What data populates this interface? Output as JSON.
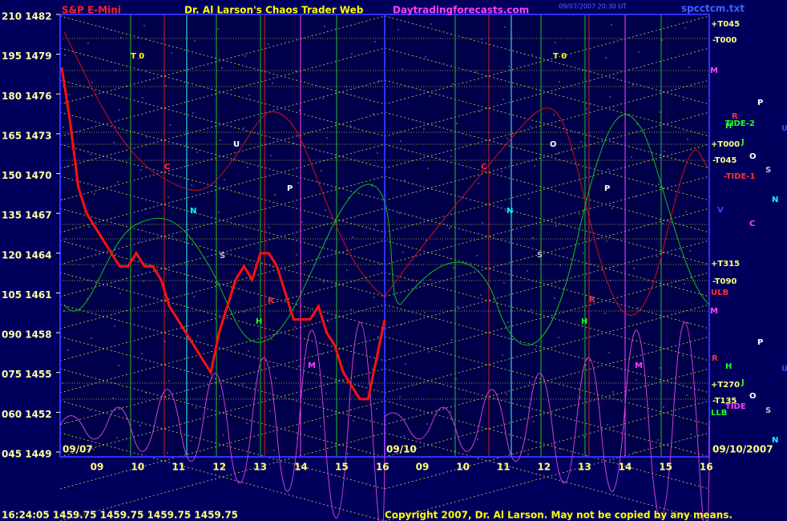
{
  "header": {
    "symbol": "S&P E-Mini",
    "site_title": "Dr. Al Larson's Chaos Trader Web",
    "url": "Daytradingforecasts.com",
    "file": "spcctcm.txt",
    "timestamp": "09/07/2007 20:30 UT"
  },
  "chart_data": {
    "type": "line",
    "yticks": [
      {
        "value": 1482,
        "label": "210 1482"
      },
      {
        "value": 1479,
        "label": "195 1479"
      },
      {
        "value": 1476,
        "label": "180 1476"
      },
      {
        "value": 1473,
        "label": "165 1473"
      },
      {
        "value": 1470,
        "label": "150 1470"
      },
      {
        "value": 1467,
        "label": "135 1467"
      },
      {
        "value": 1464,
        "label": "120 1464"
      },
      {
        "value": 1461,
        "label": "105 1461"
      },
      {
        "value": 1458,
        "label": "090 1458"
      },
      {
        "value": 1455,
        "label": "075 1455"
      },
      {
        "value": 1452,
        "label": "060 1452"
      },
      {
        "value": 1449,
        "label": "045 1449"
      }
    ],
    "ylim": [
      1449,
      1482
    ],
    "hour_labels": [
      "09",
      "10",
      "11",
      "12",
      "13",
      "14",
      "15",
      "16",
      "09",
      "10",
      "11",
      "12",
      "13",
      "14",
      "15",
      "16"
    ],
    "panel_dates": [
      "09/07",
      "09/10"
    ],
    "end_date": "09/10/2007",
    "series": [
      {
        "name": "S&P E-Mini",
        "color": "#ff1010",
        "values": [
          1478,
          1474,
          1469,
          1467,
          1466,
          1465,
          1464,
          1463,
          1463,
          1464,
          1463,
          1463,
          1462,
          1460,
          1459,
          1458,
          1457,
          1456,
          1455,
          1458,
          1460,
          1462,
          1463,
          1462,
          1464,
          1464,
          1463,
          1461,
          1459,
          1459,
          1459,
          1460,
          1458,
          1457,
          1455,
          1454,
          1453,
          1453,
          1456,
          1459
        ]
      }
    ],
    "annotations": [
      {
        "text": "+T045",
        "color": "#ffff80"
      },
      {
        "text": "-T000",
        "color": "#ffff80"
      },
      {
        "text": "M",
        "color": "#ff40ff"
      },
      {
        "text": "+T000",
        "color": "#ffff80"
      },
      {
        "text": "-T045",
        "color": "#ffff80"
      },
      {
        "text": "+T315",
        "color": "#ffff80"
      },
      {
        "text": "-T090",
        "color": "#ffff80"
      },
      {
        "text": "ULB",
        "color": "#ff3030"
      },
      {
        "text": "M",
        "color": "#ff40ff"
      },
      {
        "text": "+T270",
        "color": "#ffff80"
      },
      {
        "text": "-T135",
        "color": "#ffff80"
      },
      {
        "text": "LLB",
        "color": "#20ff20"
      },
      {
        "text": "TIDE-2",
        "color": "#20ff20"
      },
      {
        "text": "-TIDE-1",
        "color": "#ff3030"
      },
      {
        "text": "TIDE",
        "color": "#ff40ff"
      },
      {
        "text": "P",
        "color": "#ffffff"
      },
      {
        "text": "R",
        "color": "#ff3030"
      },
      {
        "text": "H",
        "color": "#20ff20"
      },
      {
        "text": "J",
        "color": "#20ff20"
      },
      {
        "text": "O",
        "color": "#ffffff"
      },
      {
        "text": "S",
        "color": "#c0c0c0"
      },
      {
        "text": "N",
        "color": "#00ffff"
      },
      {
        "text": "V",
        "color": "#4040ff"
      },
      {
        "text": "C",
        "color": "#ff40ff"
      },
      {
        "text": "U",
        "color": "#4040ff"
      },
      {
        "text": "P",
        "color": "#ffffff"
      },
      {
        "text": "R",
        "color": "#ff3030"
      },
      {
        "text": "H",
        "color": "#20ff20"
      },
      {
        "text": "J",
        "color": "#20ff20"
      },
      {
        "text": "O",
        "color": "#ffffff"
      },
      {
        "text": "S",
        "color": "#c0c0c0"
      },
      {
        "text": "N",
        "color": "#00ffff"
      },
      {
        "text": "U",
        "color": "#4040ff"
      },
      {
        "text": "T 0",
        "color": "#ffff00"
      },
      {
        "text": "T 0",
        "color": "#ffff00"
      },
      {
        "text": "C",
        "color": "#ff3030"
      },
      {
        "text": "C",
        "color": "#ff3030"
      },
      {
        "text": "U",
        "color": "#ffffff"
      },
      {
        "text": "O",
        "color": "#ffffff"
      },
      {
        "text": "P",
        "color": "#ffffff"
      },
      {
        "text": "P",
        "color": "#ffffff"
      },
      {
        "text": "N",
        "color": "#00ffff"
      },
      {
        "text": "N",
        "color": "#00ffff"
      },
      {
        "text": "S",
        "color": "#c0c0c0"
      },
      {
        "text": "S",
        "color": "#c0c0c0"
      },
      {
        "text": "H",
        "color": "#20ff20"
      },
      {
        "text": "H",
        "color": "#20ff20"
      },
      {
        "text": "M",
        "color": "#ff40ff"
      },
      {
        "text": "M",
        "color": "#ff40ff"
      },
      {
        "text": "R",
        "color": "#ff3030"
      },
      {
        "text": "R",
        "color": "#ff3030"
      }
    ]
  },
  "footer": {
    "quote": "16:24:05  1459.75 1459.75 1459.75 1459.75",
    "copyright": "Copyright 2007, Dr. Al Larson. May not be copied by any means."
  }
}
